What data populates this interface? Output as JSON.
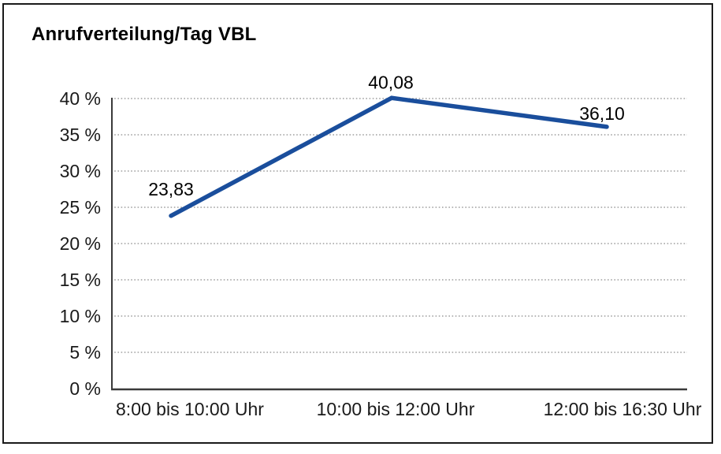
{
  "title": "Anrufverteilung/Tag VBL",
  "chart_data": {
    "type": "line",
    "title": "Anrufverteilung/Tag VBL",
    "categories": [
      "8:00 bis 10:00 Uhr",
      "10:00 bis 12:00 Uhr",
      "12:00 bis 16:30 Uhr"
    ],
    "series": [
      {
        "name": "Anrufverteilung",
        "values": [
          23.83,
          40.08,
          36.1
        ],
        "data_labels": [
          "23,83",
          "40,08",
          "36,10"
        ]
      }
    ],
    "xlabel": "",
    "ylabel": "",
    "ylim": [
      0,
      40
    ],
    "ytick_step": 5,
    "ytick_labels": [
      "0 %",
      "5 %",
      "10 %",
      "15 %",
      "20 %",
      "25 %",
      "30 %",
      "35 %",
      "40 %"
    ],
    "grid": "horizontal-dotted",
    "legend_position": "none"
  },
  "colors": {
    "line": "#1a4e9c",
    "grid": "#8c8c8c",
    "axis": "#3a3a3a",
    "text": "#1a1a1a",
    "border": "#1a1a1a",
    "background": "#ffffff"
  }
}
